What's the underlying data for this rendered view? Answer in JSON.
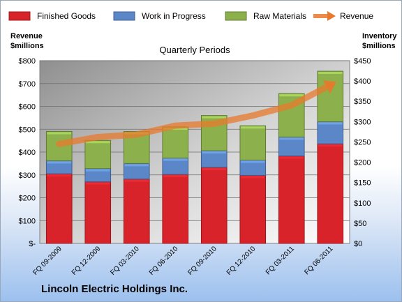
{
  "chart_data": {
    "type": "bar",
    "stacked": true,
    "title": "Quarterly Periods",
    "company": "Lincoln Electric Holdings Inc.",
    "categories": [
      "FQ 09-2009",
      "FQ 12-2009",
      "FQ 03-2010",
      "FQ 06-2010",
      "FQ 09-2010",
      "FQ 12-2010",
      "FQ 03-2011",
      "FQ 06-2011"
    ],
    "series": [
      {
        "name": "Finished Goods",
        "axis": "left",
        "color": "#d8232a",
        "values": [
          305,
          270,
          282,
          302,
          333,
          298,
          383,
          436
        ]
      },
      {
        "name": "Work in Progress",
        "axis": "left",
        "color": "#5b86c8",
        "values": [
          57,
          58,
          68,
          72,
          73,
          67,
          83,
          97
        ]
      },
      {
        "name": "Raw Materials",
        "axis": "left",
        "color": "#8cb04c",
        "values": [
          128,
          123,
          140,
          136,
          154,
          150,
          190,
          221
        ]
      },
      {
        "name": "Revenue",
        "axis": "right",
        "type": "line",
        "color": "#e8792c",
        "values": [
          245,
          262,
          268,
          290,
          295,
          315,
          340,
          390
        ]
      }
    ],
    "ylabel_left": "Revenue\n$millions",
    "ylabel_left_lines": [
      "Revenue",
      "$millions"
    ],
    "ylabel_right_lines": [
      "Inventory",
      "$millions"
    ],
    "ylim_left": [
      0,
      800
    ],
    "ylim_right": [
      0,
      450
    ],
    "yticks_left": [
      "$-",
      "$100",
      "$200",
      "$300",
      "$400",
      "$500",
      "$600",
      "$700",
      "$800"
    ],
    "yticks_right": [
      "$0",
      "$50",
      "$100",
      "$150",
      "$200",
      "$250",
      "$300",
      "$350",
      "$400",
      "$450"
    ],
    "legend_position": "top",
    "grid": true
  }
}
